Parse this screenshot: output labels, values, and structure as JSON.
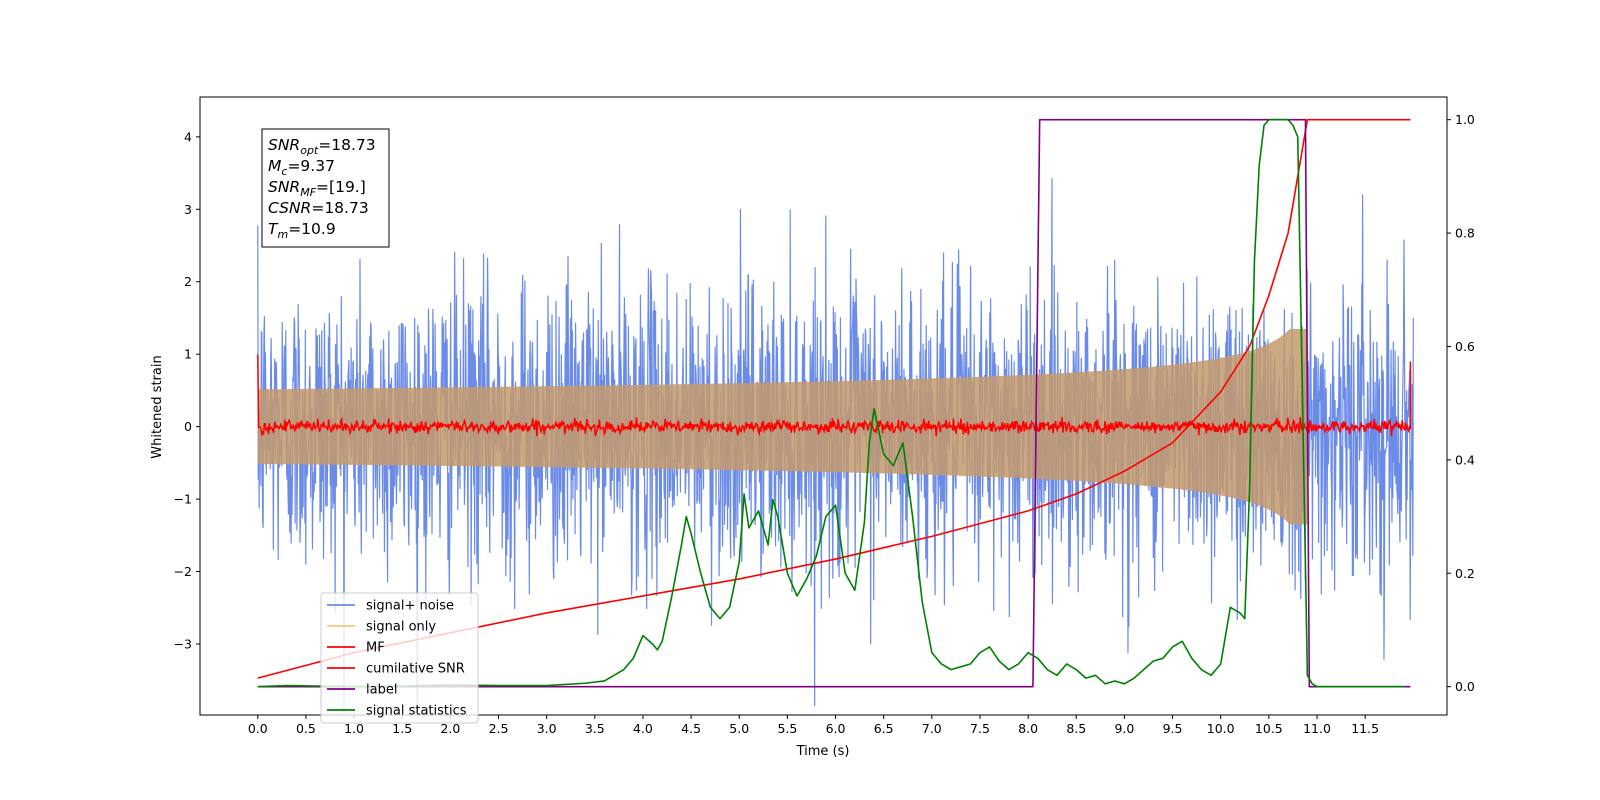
{
  "chart_data": {
    "type": "line",
    "xlabel": "Time (s)",
    "ylabel": "Whitened strain",
    "xlim": [
      -0.6,
      12.35
    ],
    "ylim": [
      -3.98,
      4.55
    ],
    "ylim_right": [
      -0.05,
      1.04
    ],
    "x_ticks": [
      "0.0",
      "0.5",
      "1.0",
      "1.5",
      "2.0",
      "2.5",
      "3.0",
      "3.5",
      "4.0",
      "4.5",
      "5.0",
      "5.5",
      "6.0",
      "6.5",
      "7.0",
      "7.5",
      "8.0",
      "8.5",
      "9.0",
      "9.5",
      "10.0",
      "10.5",
      "11.0",
      "11.5"
    ],
    "y_ticks_left": [
      "−3",
      "−2",
      "−1",
      "0",
      "1",
      "2",
      "3",
      "4"
    ],
    "y_ticks_right": [
      "0.0",
      "0.2",
      "0.4",
      "0.6",
      "0.8",
      "1.0"
    ],
    "duration": 12.0,
    "merger_time": 10.9,
    "annotation": [
      {
        "base": "SNR",
        "sub": "opt",
        "rest": "=18.73"
      },
      {
        "base": "M",
        "sub": "c",
        "rest": "=9.37"
      },
      {
        "base": "SNR",
        "sub": "MF",
        "rest": "=[19.]"
      },
      {
        "base": "CSNR",
        "sub": "",
        "rest": "=18.73"
      },
      {
        "base": "T",
        "sub": "m",
        "rest": "=10.9"
      }
    ],
    "legend": {
      "placement": "lower-left",
      "entries": [
        {
          "label": "signal+ noise",
          "color": "#6b8be8"
        },
        {
          "label": "signal only",
          "color": "#f5c97a"
        },
        {
          "label": "MF",
          "color": "#ff0000"
        },
        {
          "label": "cumilative SNR",
          "color": "#ff0000"
        },
        {
          "label": "label",
          "color": "#800080"
        },
        {
          "label": "signal statistics",
          "color": "#008000"
        }
      ]
    },
    "series": [
      {
        "name": "signal+ noise",
        "axis": "left",
        "color": "#6b8be8",
        "noise_sigma": 1.0
      },
      {
        "name": "signal only",
        "axis": "left",
        "color": "#c49a6c",
        "amplitude_at_merger": 1.1
      },
      {
        "name": "MF",
        "axis": "left",
        "color": "#ff0000",
        "values_note_start": 1.0,
        "values_end": 0.9
      },
      {
        "name": "cumilative SNR",
        "axis": "right",
        "x": [
          0.0,
          1.0,
          2.0,
          3.0,
          4.0,
          5.0,
          6.0,
          7.0,
          8.0,
          8.5,
          9.0,
          9.5,
          10.0,
          10.3,
          10.5,
          10.7,
          10.85,
          10.9,
          11.97
        ],
        "values": [
          0.015,
          0.06,
          0.095,
          0.13,
          0.16,
          0.19,
          0.225,
          0.265,
          0.31,
          0.34,
          0.38,
          0.43,
          0.52,
          0.6,
          0.69,
          0.8,
          0.95,
          1.0,
          1.0
        ]
      },
      {
        "name": "label",
        "axis": "right",
        "x": [
          0.0,
          8.05,
          8.12,
          10.88,
          10.92,
          11.97
        ],
        "values": [
          0.0,
          0.0,
          1.0,
          1.0,
          0.0,
          0.0
        ]
      },
      {
        "name": "signal statistics",
        "axis": "right",
        "x": [
          0.0,
          0.3,
          0.6,
          1.0,
          1.5,
          2.0,
          2.5,
          3.0,
          3.2,
          3.4,
          3.6,
          3.8,
          3.9,
          4.0,
          4.1,
          4.15,
          4.2,
          4.3,
          4.4,
          4.45,
          4.5,
          4.6,
          4.7,
          4.8,
          4.9,
          5.0,
          5.05,
          5.1,
          5.2,
          5.3,
          5.35,
          5.4,
          5.5,
          5.6,
          5.7,
          5.8,
          5.9,
          6.0,
          6.1,
          6.2,
          6.3,
          6.35,
          6.4,
          6.5,
          6.55,
          6.6,
          6.7,
          6.8,
          6.9,
          7.0,
          7.1,
          7.2,
          7.3,
          7.4,
          7.5,
          7.6,
          7.7,
          7.8,
          7.9,
          8.0,
          8.1,
          8.2,
          8.3,
          8.4,
          8.5,
          8.6,
          8.7,
          8.8,
          8.9,
          9.0,
          9.1,
          9.2,
          9.3,
          9.4,
          9.5,
          9.6,
          9.7,
          9.8,
          9.9,
          10.0,
          10.1,
          10.2,
          10.25,
          10.3,
          10.35,
          10.4,
          10.45,
          10.5,
          10.6,
          10.7,
          10.75,
          10.8,
          10.85,
          10.9,
          10.95,
          11.0,
          11.5,
          11.9
        ],
        "values": [
          0.0,
          0.002,
          0.001,
          0.0,
          0.001,
          0.003,
          0.002,
          0.002,
          0.004,
          0.006,
          0.01,
          0.03,
          0.05,
          0.09,
          0.075,
          0.065,
          0.08,
          0.16,
          0.25,
          0.3,
          0.27,
          0.2,
          0.14,
          0.12,
          0.14,
          0.22,
          0.34,
          0.28,
          0.31,
          0.25,
          0.33,
          0.3,
          0.2,
          0.16,
          0.19,
          0.23,
          0.3,
          0.32,
          0.2,
          0.17,
          0.29,
          0.43,
          0.49,
          0.41,
          0.4,
          0.39,
          0.43,
          0.3,
          0.15,
          0.06,
          0.04,
          0.03,
          0.035,
          0.04,
          0.06,
          0.07,
          0.045,
          0.03,
          0.04,
          0.06,
          0.05,
          0.03,
          0.02,
          0.04,
          0.03,
          0.015,
          0.02,
          0.005,
          0.01,
          0.005,
          0.015,
          0.03,
          0.045,
          0.05,
          0.07,
          0.08,
          0.05,
          0.03,
          0.02,
          0.04,
          0.14,
          0.13,
          0.12,
          0.35,
          0.75,
          0.92,
          0.99,
          1.0,
          1.0,
          1.0,
          0.99,
          0.97,
          0.5,
          0.02,
          0.005,
          0.0,
          0.0,
          0.0
        ]
      }
    ]
  }
}
